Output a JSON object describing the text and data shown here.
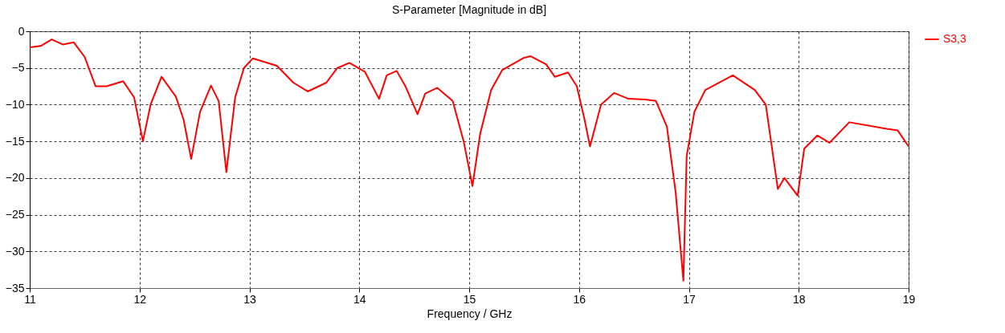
{
  "chart_data": {
    "type": "line",
    "title": "S-Parameter [Magnitude in dB]",
    "xlabel": "Frequency / GHz",
    "xlim": [
      11,
      19
    ],
    "xticks": [
      11,
      12,
      13,
      14,
      15,
      16,
      17,
      18,
      19
    ],
    "ylim": [
      -35,
      0
    ],
    "yticks": [
      -35,
      -30,
      -25,
      -20,
      -15,
      -10,
      -5,
      0
    ],
    "grid": true,
    "legend": "right",
    "line_style": "solid",
    "series": [
      {
        "name": "S3,3",
        "color": "#ff0000",
        "x": [
          11.0,
          11.1,
          11.2,
          11.3,
          11.4,
          11.5,
          11.6,
          11.7,
          11.85,
          11.95,
          12.03,
          12.1,
          12.2,
          12.33,
          12.4,
          12.47,
          12.55,
          12.65,
          12.72,
          12.79,
          12.87,
          12.95,
          13.03,
          13.25,
          13.4,
          13.53,
          13.7,
          13.8,
          13.91,
          14.05,
          14.18,
          14.25,
          14.34,
          14.42,
          14.53,
          14.6,
          14.71,
          14.85,
          14.95,
          15.03,
          15.1,
          15.2,
          15.3,
          15.5,
          15.56,
          15.7,
          15.78,
          15.9,
          15.98,
          16.05,
          16.1,
          16.2,
          16.32,
          16.45,
          16.6,
          16.7,
          16.8,
          16.88,
          16.95,
          16.98,
          17.05,
          17.15,
          17.4,
          17.6,
          17.7,
          17.81,
          17.87,
          17.99,
          18.05,
          18.17,
          18.28,
          18.46,
          18.8,
          18.9,
          19.0
        ],
        "values": [
          -2.2,
          -2.0,
          -1.1,
          -1.8,
          -1.5,
          -3.5,
          -7.5,
          -7.5,
          -6.8,
          -9,
          -15,
          -10,
          -6.2,
          -8.9,
          -12,
          -17.4,
          -11,
          -7.4,
          -9.5,
          -19.2,
          -9,
          -5,
          -3.7,
          -4.7,
          -7.0,
          -8.2,
          -7,
          -5,
          -4.3,
          -5.5,
          -9.2,
          -6,
          -5.4,
          -7.5,
          -11.3,
          -8.5,
          -7.7,
          -9.5,
          -15,
          -21.1,
          -14,
          -8,
          -5.3,
          -3.6,
          -3.4,
          -4.5,
          -6.2,
          -5.6,
          -7.5,
          -12,
          -15.7,
          -10,
          -8.4,
          -9.2,
          -9.3,
          -9.5,
          -13,
          -22,
          -34,
          -17,
          -11,
          -8,
          -6.0,
          -8,
          -10,
          -21.5,
          -20.0,
          -22.4,
          -16,
          -14.2,
          -15.2,
          -12.4,
          -13.3,
          -13.5,
          -15.7
        ]
      }
    ]
  }
}
